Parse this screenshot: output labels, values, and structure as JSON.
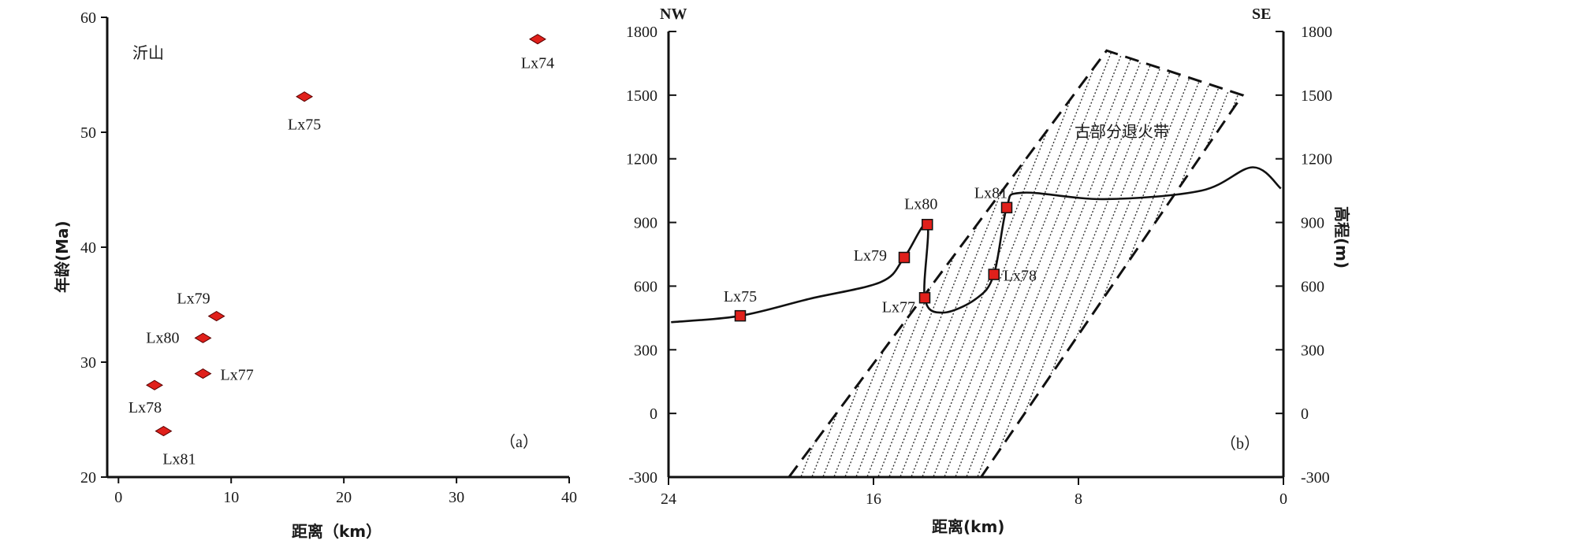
{
  "chart_data": [
    {
      "type": "scatter",
      "panel_label": "（a）",
      "location_label": "沂山",
      "xlabel": "距离（km）",
      "ylabel": "年龄(Ma)",
      "xlim": [
        -1,
        40
      ],
      "ylim": [
        20,
        60
      ],
      "xticks": [
        0,
        10,
        20,
        30,
        40
      ],
      "yticks": [
        20,
        30,
        40,
        50,
        60
      ],
      "marker": "diamond",
      "marker_color": "#e0201b",
      "points": [
        {
          "label": "Lx74",
          "x": 37.2,
          "y": 58.1
        },
        {
          "label": "Lx75",
          "x": 16.5,
          "y": 53.1
        },
        {
          "label": "Lx79",
          "x": 8.7,
          "y": 34.0
        },
        {
          "label": "Lx80",
          "x": 7.5,
          "y": 32.1
        },
        {
          "label": "Lx77",
          "x": 7.5,
          "y": 29.0
        },
        {
          "label": "Lx78",
          "x": 3.2,
          "y": 28.0
        },
        {
          "label": "Lx81",
          "x": 4.0,
          "y": 24.0
        }
      ]
    },
    {
      "type": "line",
      "panel_label": "（b）",
      "left_corner": "NW",
      "right_corner": "SE",
      "zone_label": "古部分退火带",
      "xlabel": "距离(km)",
      "ylabel_right": "高程(m)",
      "x_reversed": true,
      "xlim": [
        24,
        0
      ],
      "ylim": [
        -300,
        1800
      ],
      "xticks": [
        24,
        16,
        8,
        0
      ],
      "yticks": [
        -300,
        0,
        300,
        600,
        900,
        1200,
        1500,
        1800
      ],
      "marker": "square",
      "marker_color": "#e0201b",
      "samples": [
        {
          "label": "Lx75",
          "x": 21.2,
          "y": 460
        },
        {
          "label": "Lx79",
          "x": 14.8,
          "y": 735
        },
        {
          "label": "Lx80",
          "x": 13.9,
          "y": 890
        },
        {
          "label": "Lx77",
          "x": 14.0,
          "y": 545
        },
        {
          "label": "Lx78",
          "x": 11.3,
          "y": 655
        },
        {
          "label": "Lx81",
          "x": 10.8,
          "y": 970
        }
      ],
      "profile": [
        {
          "x": 23.9,
          "y": 430
        },
        {
          "x": 21.2,
          "y": 460
        },
        {
          "x": 18.5,
          "y": 540
        },
        {
          "x": 15.7,
          "y": 620
        },
        {
          "x": 14.8,
          "y": 735
        },
        {
          "x": 13.9,
          "y": 890
        },
        {
          "x": 14.0,
          "y": 545
        },
        {
          "x": 13.3,
          "y": 475
        },
        {
          "x": 12.0,
          "y": 540
        },
        {
          "x": 11.3,
          "y": 655
        },
        {
          "x": 10.8,
          "y": 970
        },
        {
          "x": 10.2,
          "y": 1040
        },
        {
          "x": 7.0,
          "y": 1010
        },
        {
          "x": 3.2,
          "y": 1050
        },
        {
          "x": 1.2,
          "y": 1160
        },
        {
          "x": 0.1,
          "y": 1060
        }
      ],
      "zone_polygon": [
        {
          "x": 19.3,
          "y": -300
        },
        {
          "x": 6.9,
          "y": 1710
        },
        {
          "x": 1.6,
          "y": 1500
        },
        {
          "x": 11.8,
          "y": -300
        }
      ]
    }
  ]
}
